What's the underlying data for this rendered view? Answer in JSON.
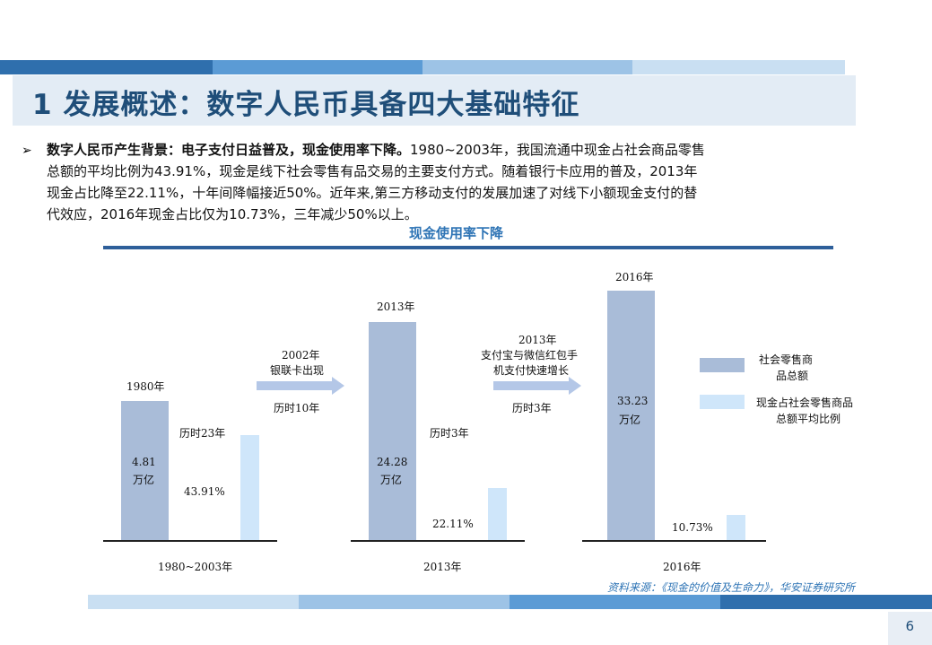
{
  "header": {
    "title": "1 发展概述：数字人民币具备四大基础特征"
  },
  "body": {
    "bullet_bold": "数字人民币产生背景：电子支付日益普及，现金使用率下降。",
    "bullet_text_1": "1980~2003年，我国流通中现金占社会商品零售",
    "line2": "总额的平均比例为43.91%，现金是线下社会零售有品交易的主要支付方式。随着银行卡应用的普及，2013年",
    "line3": "现金占比降至22.11%，十年间降幅接近50%。近年来,第三方移动支付的发展加速了对线下小额现金支付的替",
    "line4": "代效应，2016年现金占比仅为10.73%，三年减少50%以上。"
  },
  "chart_data": {
    "type": "bar",
    "title": "现金使用率下降",
    "categories": [
      "1980~2003年",
      "2013年",
      "2016年"
    ],
    "series": [
      {
        "name": "社会零售商品总额",
        "values": [
          4.81,
          24.28,
          33.23
        ],
        "labels": [
          "4.81\n万亿",
          "24.28\n万亿",
          "33.23\n万亿"
        ],
        "year_labels": [
          "1980年",
          "2013年",
          "2016年"
        ]
      },
      {
        "name": "现金占社会零售商品总额平均比例",
        "values": [
          43.91,
          22.11,
          10.73
        ],
        "labels": [
          "43.91%",
          "22.11%",
          "10.73%"
        ]
      }
    ],
    "annotations": [
      {
        "text": "历时23年"
      },
      {
        "text": "2002年\n银联卡出现"
      },
      {
        "text": "历时10年"
      },
      {
        "text": "历时3年"
      },
      {
        "text": "2013年\n支付宝与微信红包手\n机支付快速增长"
      },
      {
        "text": "历时3年"
      }
    ],
    "colors": {
      "amount": "#a9bcd8",
      "ratio": "#cfe6fa"
    }
  },
  "legend": {
    "item1_line1": "社会零售商",
    "item1_line2": "品总额",
    "item2_line1": "现金占社会零售商品",
    "item2_line2": "总额平均比例"
  },
  "labels": {
    "b1_value": "4.81",
    "b1_unit": "万亿",
    "b1_year": "1980年",
    "b1_pct": "43.91%",
    "b1_span": "历时23年",
    "b1_cat": "1980~2003年",
    "arrow1_l1": "2002年",
    "arrow1_l2": "银联卡出现",
    "arrow1_span": "历时10年",
    "b2_value": "24.28",
    "b2_unit": "万亿",
    "b2_year": "2013年",
    "b2_pct": "22.11%",
    "b2_span": "历时3年",
    "b2_cat": "2013年",
    "arrow2_l1": "2013年",
    "arrow2_l2": "支付宝与微信红包手",
    "arrow2_l3": "机支付快速增长",
    "arrow2_span": "历时3年",
    "b3_value": "33.23",
    "b3_unit": "万亿",
    "b3_year": "2016年",
    "b3_pct": "10.73%",
    "b3_cat": "2016年"
  },
  "footer": {
    "source": "资料来源：《现金的价值及生命力》，华安证券研究所",
    "page_number": "6"
  }
}
